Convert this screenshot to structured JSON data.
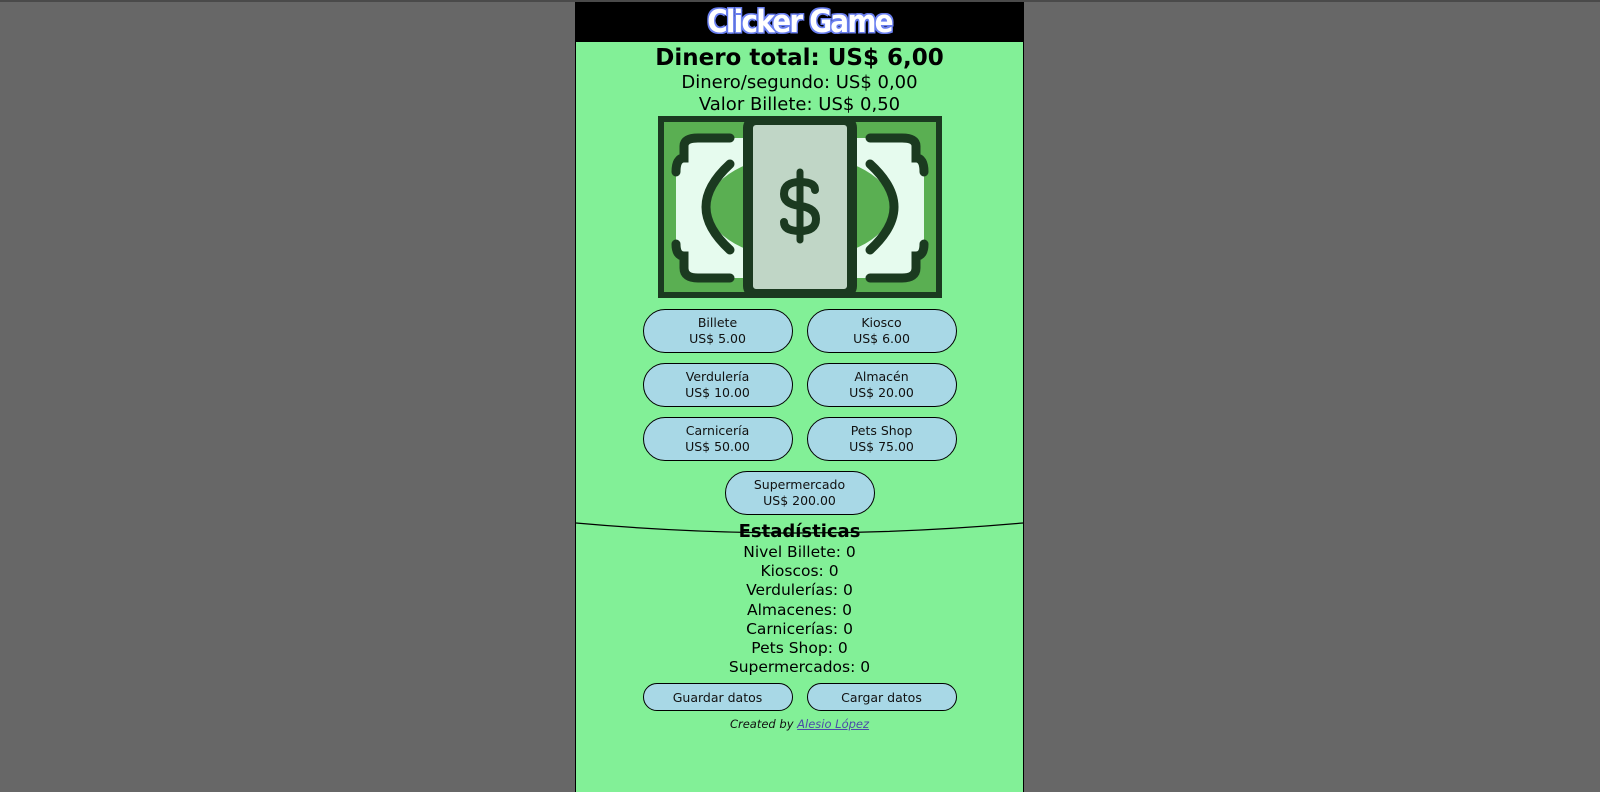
{
  "title": "Clicker Game",
  "money": {
    "total_label": "Dinero total: US$ 6,00",
    "rate_label": "Dinero/segundo: US$ 0,00",
    "bill_value_label": "Valor Billete: US$ 0,50"
  },
  "bill_icon": "dollar-bill-icon",
  "shop": [
    {
      "name": "Billete",
      "price": "US$ 5.00"
    },
    {
      "name": "Kiosco",
      "price": "US$ 6.00"
    },
    {
      "name": "Verdulería",
      "price": "US$ 10.00"
    },
    {
      "name": "Almacén",
      "price": "US$ 20.00"
    },
    {
      "name": "Carnicería",
      "price": "US$ 50.00"
    },
    {
      "name": "Pets Shop",
      "price": "US$ 75.00"
    },
    {
      "name": "Supermercado",
      "price": "US$ 200.00"
    }
  ],
  "stats": {
    "title": "Estadísticas",
    "items": [
      "Nivel Billete: 0",
      "Kioscos: 0",
      "Verdulerías: 0",
      "Almacenes: 0",
      "Carnicerías: 0",
      "Pets Shop: 0",
      "Supermercados: 0"
    ]
  },
  "actions": {
    "save": "Guardar datos",
    "load": "Cargar datos"
  },
  "credit": {
    "prefix": "Created by",
    "author": "Alesio López"
  },
  "colors": {
    "background": "#676767",
    "panel": "#82f097",
    "button": "#a8d8e6",
    "bill_dark": "#1b3a20",
    "bill_mid": "#5aaf52",
    "bill_light": "#e6fbee",
    "bill_center": "#c0d6c6"
  }
}
